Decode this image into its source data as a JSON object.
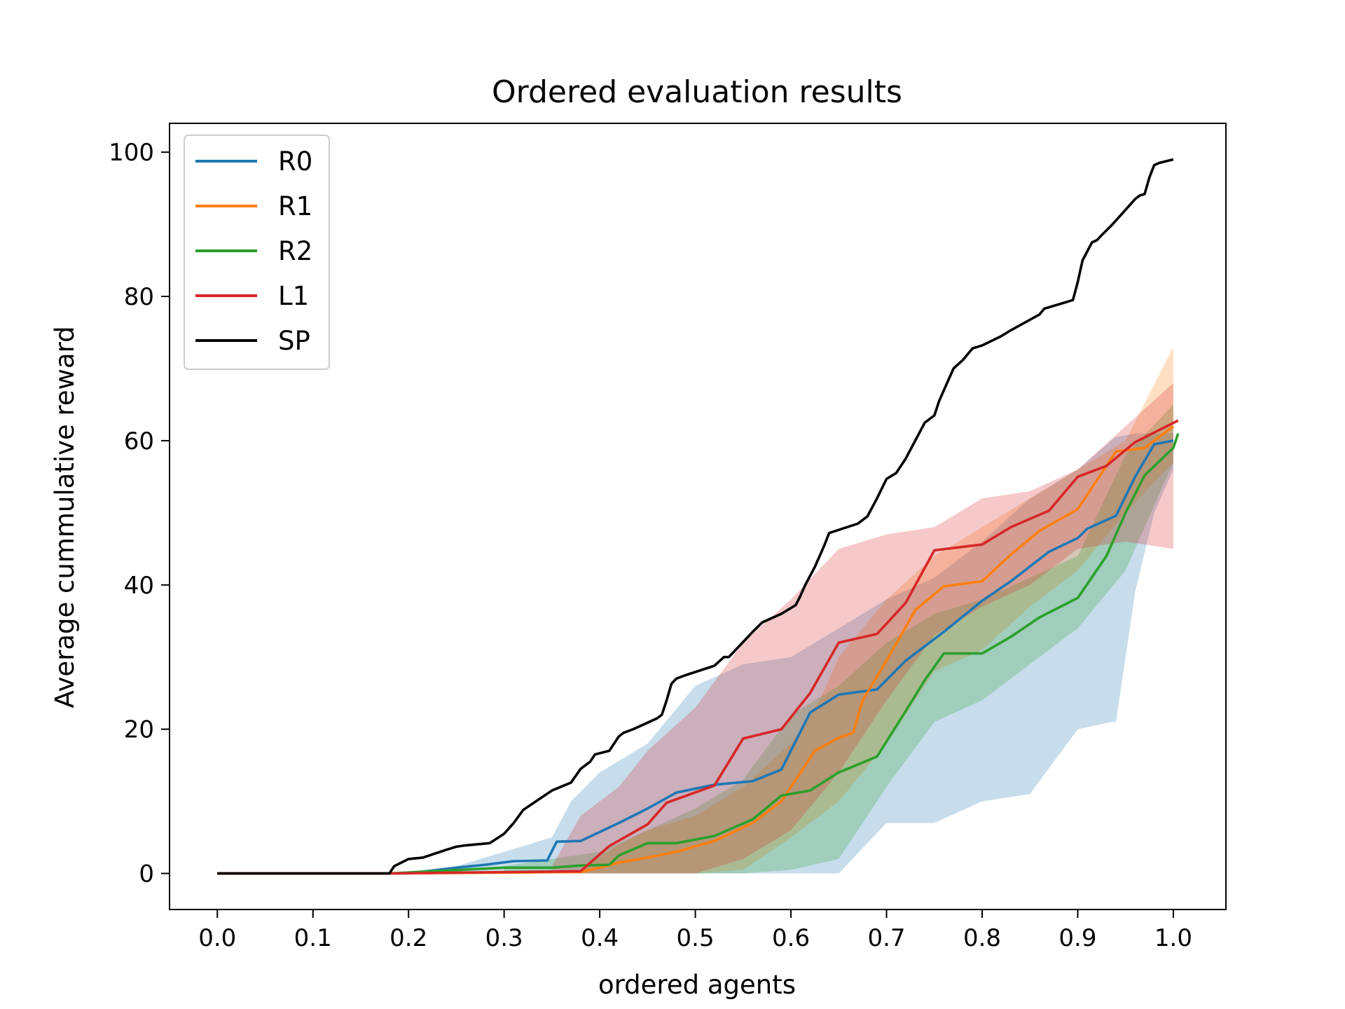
{
  "chart_data": {
    "type": "line",
    "title": "Ordered evaluation results",
    "xlabel": "ordered agents",
    "ylabel": "Average cummulative reward",
    "xlim": [
      -0.05,
      1.055
    ],
    "ylim": [
      -5,
      104
    ],
    "xticks": [
      0.0,
      0.1,
      0.2,
      0.3,
      0.4,
      0.5,
      0.6,
      0.7,
      0.8,
      0.9,
      1.0
    ],
    "xtick_labels": [
      "0.0",
      "0.1",
      "0.2",
      "0.3",
      "0.4",
      "0.5",
      "0.6",
      "0.7",
      "0.8",
      "0.9",
      "1.0"
    ],
    "yticks": [
      0,
      20,
      40,
      60,
      80,
      100
    ],
    "ytick_labels": [
      "0",
      "20",
      "40",
      "60",
      "80",
      "100"
    ],
    "grid": false,
    "legend": "top-left",
    "series": [
      {
        "name": "R0",
        "color": "#1f77b4",
        "x": [
          0,
          0.18,
          0.2,
          0.22,
          0.25,
          0.28,
          0.31,
          0.345,
          0.355,
          0.38,
          0.42,
          0.45,
          0.48,
          0.52,
          0.56,
          0.59,
          0.62,
          0.65,
          0.69,
          0.72,
          0.76,
          0.8,
          0.83,
          0.87,
          0.9,
          0.91,
          0.94,
          0.96,
          0.98,
          1.0
        ],
        "y": [
          0,
          0,
          0,
          0.3,
          0.8,
          1.2,
          1.7,
          1.8,
          4.4,
          4.5,
          7,
          9,
          11.2,
          12.3,
          12.8,
          14.4,
          22.3,
          24.8,
          25.5,
          29.5,
          33.5,
          37.8,
          40.5,
          44.6,
          46.5,
          47.8,
          49.6,
          55,
          59.5,
          60
        ]
      },
      {
        "name": "R1",
        "color": "#ff7f0e",
        "x": [
          0,
          0.18,
          0.38,
          0.4,
          0.42,
          0.45,
          0.48,
          0.52,
          0.56,
          0.59,
          0.6,
          0.625,
          0.65,
          0.665,
          0.675,
          0.7,
          0.73,
          0.76,
          0.8,
          0.83,
          0.86,
          0.9,
          0.91,
          0.93,
          0.94,
          0.97,
          1.0
        ],
        "y": [
          0,
          0,
          0.2,
          0.8,
          1.5,
          2.2,
          3,
          4.5,
          7,
          10,
          12,
          17,
          18.8,
          19.5,
          24,
          29.5,
          36.5,
          39.8,
          40.5,
          44.2,
          47.5,
          50.5,
          52.5,
          56.5,
          58.5,
          59,
          62
        ]
      },
      {
        "name": "R2",
        "color": "#2ca02c",
        "x": [
          0,
          0.18,
          0.3,
          0.35,
          0.38,
          0.41,
          0.42,
          0.45,
          0.48,
          0.52,
          0.56,
          0.59,
          0.62,
          0.65,
          0.69,
          0.72,
          0.74,
          0.76,
          0.8,
          0.83,
          0.86,
          0.9,
          0.93,
          0.95,
          0.97,
          1.0,
          1.005
        ],
        "y": [
          0,
          0,
          0.8,
          0.8,
          1.1,
          1.2,
          2.5,
          4.2,
          4.2,
          5.2,
          7.5,
          10.8,
          11.5,
          14,
          16.2,
          22.5,
          26.8,
          30.5,
          30.5,
          32.8,
          35.5,
          38.2,
          44,
          50,
          55.2,
          59,
          61
        ]
      },
      {
        "name": "L1",
        "color": "#d62728",
        "x": [
          0,
          0.18,
          0.38,
          0.41,
          0.45,
          0.47,
          0.52,
          0.55,
          0.59,
          0.62,
          0.65,
          0.69,
          0.72,
          0.75,
          0.8,
          0.83,
          0.87,
          0.9,
          0.93,
          0.96,
          1.005
        ],
        "y": [
          0,
          0,
          0.3,
          3.8,
          6.8,
          9.8,
          12.2,
          18.7,
          20,
          25,
          32,
          33.2,
          37.5,
          44.8,
          45.6,
          48,
          50.3,
          55,
          56.5,
          59.8,
          62.8
        ]
      },
      {
        "name": "SP",
        "color": "#000000",
        "x": [
          0,
          0.18,
          0.185,
          0.2,
          0.215,
          0.24,
          0.25,
          0.26,
          0.285,
          0.3,
          0.31,
          0.32,
          0.35,
          0.37,
          0.38,
          0.39,
          0.395,
          0.41,
          0.42,
          0.425,
          0.435,
          0.46,
          0.465,
          0.47,
          0.475,
          0.48,
          0.49,
          0.52,
          0.53,
          0.535,
          0.56,
          0.57,
          0.59,
          0.605,
          0.61,
          0.615,
          0.625,
          0.635,
          0.64,
          0.67,
          0.68,
          0.69,
          0.7,
          0.71,
          0.72,
          0.73,
          0.74,
          0.75,
          0.755,
          0.76,
          0.77,
          0.78,
          0.785,
          0.79,
          0.8,
          0.82,
          0.83,
          0.86,
          0.865,
          0.87,
          0.895,
          0.9,
          0.905,
          0.915,
          0.92,
          0.925,
          0.935,
          0.95,
          0.96,
          0.965,
          0.97,
          0.975,
          0.98,
          0.985,
          1.0
        ],
        "y": [
          0,
          0,
          1,
          2,
          2.2,
          3.3,
          3.7,
          3.9,
          4.2,
          5.5,
          7,
          8.8,
          11.5,
          12.6,
          14.5,
          15.5,
          16.5,
          17,
          19,
          19.5,
          20,
          21.5,
          22,
          24,
          26.3,
          27,
          27.5,
          28.8,
          30,
          30,
          33.5,
          34.8,
          36,
          37.2,
          38.5,
          40,
          42.5,
          45.5,
          47.2,
          48.5,
          49.5,
          52,
          54.7,
          55.5,
          57.5,
          60,
          62.5,
          63.5,
          65.5,
          67,
          70,
          71.2,
          72,
          72.8,
          73.2,
          74.5,
          75.3,
          77.5,
          78.3,
          78.5,
          79.5,
          82,
          85,
          87.5,
          87.8,
          88.5,
          89.8,
          92,
          93.5,
          94,
          94.2,
          96.5,
          98.2,
          98.5,
          99
        ]
      }
    ],
    "bands": [
      {
        "name": "R0",
        "color": "#1f77b4",
        "x": [
          0.18,
          0.25,
          0.3,
          0.35,
          0.37,
          0.4,
          0.45,
          0.5,
          0.55,
          0.6,
          0.65,
          0.7,
          0.75,
          0.8,
          0.85,
          0.9,
          0.935,
          0.94,
          0.96,
          0.98,
          1.0
        ],
        "lower": [
          0,
          0,
          0,
          0,
          0,
          0,
          0,
          0,
          0,
          0,
          0,
          7,
          7,
          10,
          11,
          20,
          21,
          21,
          39,
          50,
          56
        ],
        "upper": [
          0,
          1,
          3,
          5,
          10,
          14,
          18,
          26,
          29,
          30,
          34,
          38,
          41,
          46,
          52,
          56,
          60,
          60.5,
          61,
          61,
          61
        ]
      },
      {
        "name": "R1",
        "color": "#ff7f0e",
        "x": [
          0.38,
          0.42,
          0.45,
          0.5,
          0.55,
          0.6,
          0.63,
          0.65,
          0.7,
          0.75,
          0.8,
          0.85,
          0.9,
          0.95,
          1.0
        ],
        "lower": [
          0,
          0,
          0,
          0,
          0.5,
          5,
          8,
          10,
          18,
          28,
          31,
          37,
          42,
          50,
          57
        ],
        "upper": [
          0.5,
          4,
          6,
          8,
          12,
          18,
          24,
          30,
          38,
          44,
          48,
          52,
          56,
          60,
          73
        ]
      },
      {
        "name": "R2",
        "color": "#2ca02c",
        "x": [
          0.3,
          0.35,
          0.4,
          0.45,
          0.5,
          0.55,
          0.6,
          0.65,
          0.7,
          0.75,
          0.8,
          0.85,
          0.9,
          0.95,
          1.0
        ],
        "lower": [
          0,
          0,
          0,
          0,
          0,
          0,
          0.5,
          2,
          12,
          21,
          24,
          29,
          34,
          42,
          57
        ],
        "upper": [
          1,
          2,
          3,
          6,
          9,
          13,
          22,
          26,
          32,
          36,
          38,
          41,
          44,
          58,
          65
        ]
      },
      {
        "name": "L1",
        "color": "#d62728",
        "x": [
          0.35,
          0.38,
          0.42,
          0.45,
          0.5,
          0.55,
          0.6,
          0.65,
          0.7,
          0.75,
          0.8,
          0.85,
          0.9,
          0.95,
          1.0
        ],
        "lower": [
          0,
          0,
          0,
          0,
          0,
          2,
          6,
          14,
          24,
          33,
          37,
          40,
          45,
          46,
          45
        ],
        "upper": [
          1,
          8,
          12,
          17,
          23,
          32,
          38,
          45,
          47,
          48,
          52,
          53,
          56,
          62,
          68
        ]
      }
    ]
  }
}
